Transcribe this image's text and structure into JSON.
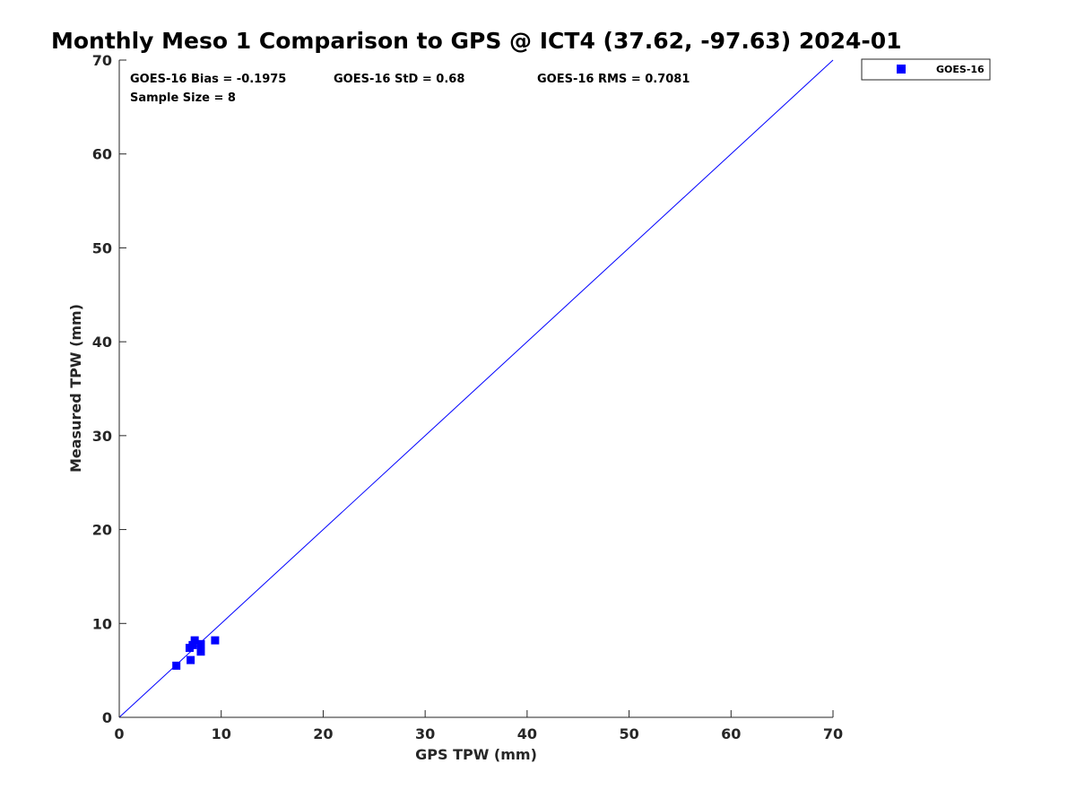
{
  "chart_data": {
    "type": "scatter",
    "title": "Monthly Meso 1 Comparison to GPS @ ICT4 (37.62, -97.63) 2024-01",
    "xlabel": "GPS TPW (mm)",
    "ylabel": "Measured TPW (mm)",
    "xlim": [
      0,
      70
    ],
    "ylim": [
      0,
      70
    ],
    "xticks": [
      "0",
      "10",
      "20",
      "30",
      "40",
      "50",
      "60",
      "70"
    ],
    "yticks": [
      "0",
      "10",
      "20",
      "30",
      "40",
      "50",
      "60",
      "70"
    ],
    "grid": false,
    "legend_position": "outside-top-right",
    "reference_line": {
      "x": [
        0,
        70
      ],
      "y": [
        0,
        70
      ],
      "color": "#0000ff"
    },
    "series": [
      {
        "name": "GOES-16",
        "marker": "square",
        "color": "#0000ff",
        "points": [
          {
            "x": 5.6,
            "y": 5.5
          },
          {
            "x": 6.9,
            "y": 7.4
          },
          {
            "x": 7.0,
            "y": 6.1
          },
          {
            "x": 7.2,
            "y": 7.7
          },
          {
            "x": 7.4,
            "y": 8.2
          },
          {
            "x": 8.0,
            "y": 7.8
          },
          {
            "x": 8.0,
            "y": 7.0
          },
          {
            "x": 9.4,
            "y": 8.2
          }
        ]
      }
    ],
    "annotations": [
      "GOES-16 Bias = -0.1975",
      "GOES-16 StD = 0.68",
      "GOES-16 RMS = 0.7081",
      "Sample Size = 8"
    ]
  }
}
